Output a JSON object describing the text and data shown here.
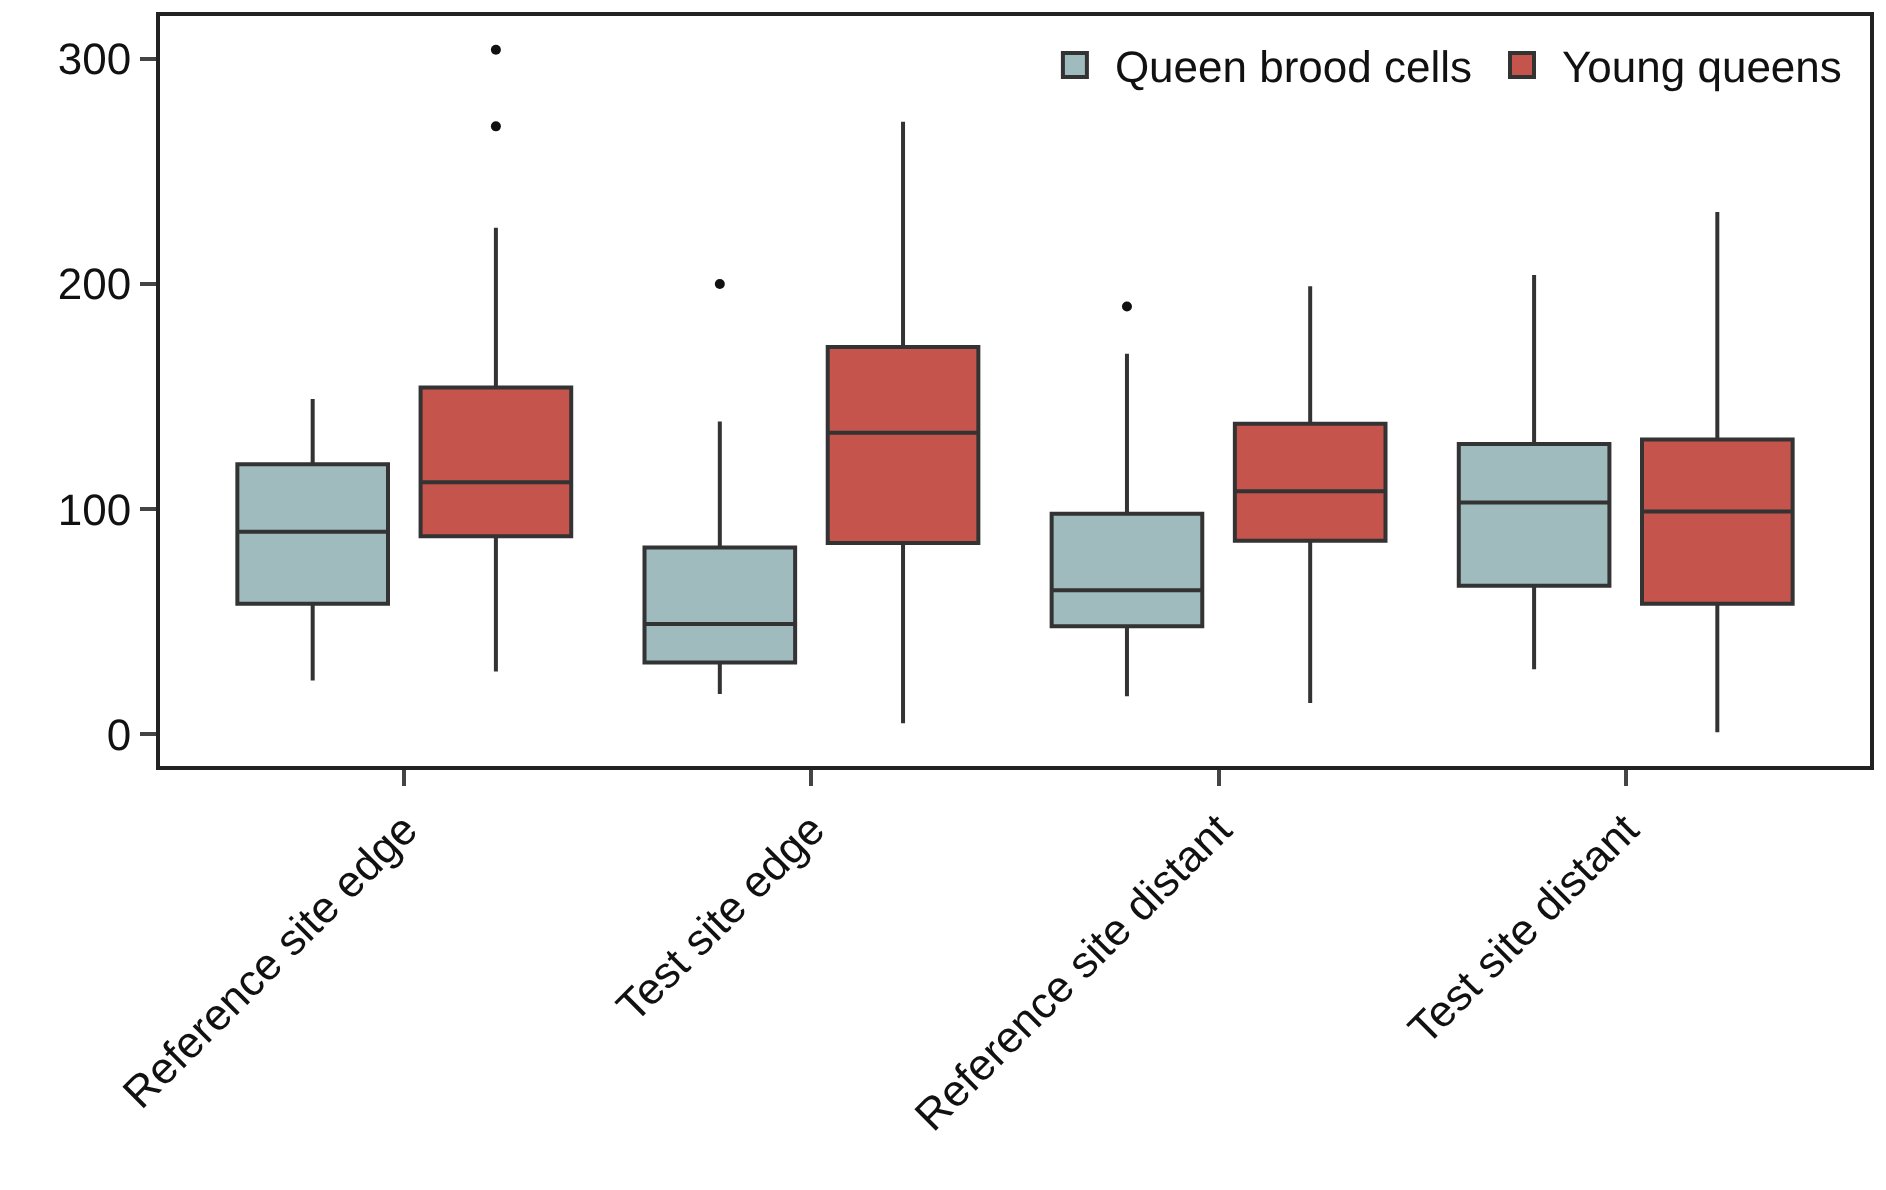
{
  "chart_data": {
    "type": "box",
    "categories": [
      "Reference site edge",
      "Test site edge",
      "Reference site distant",
      "Test site distant"
    ],
    "series": [
      {
        "name": "Queen brood cells",
        "color": "#9fbbbd",
        "boxes": [
          {
            "low": 24,
            "q1": 58,
            "median": 90,
            "q3": 120,
            "high": 149
          },
          {
            "low": 18,
            "q1": 32,
            "median": 49,
            "q3": 83,
            "high": 139,
            "outliers": [
              200
            ]
          },
          {
            "low": 17,
            "q1": 48,
            "median": 64,
            "q3": 98,
            "high": 169,
            "outliers": [
              190
            ]
          },
          {
            "low": 29,
            "q1": 66,
            "median": 103,
            "q3": 129,
            "high": 204
          }
        ]
      },
      {
        "name": "Young queens",
        "color": "#c5554c",
        "boxes": [
          {
            "low": 28,
            "q1": 88,
            "median": 112,
            "q3": 154,
            "high": 225,
            "outliers": [
              270,
              304
            ]
          },
          {
            "low": 5,
            "q1": 85,
            "median": 134,
            "q3": 172,
            "high": 272
          },
          {
            "low": 14,
            "q1": 86,
            "median": 108,
            "q3": 138,
            "high": 199
          },
          {
            "low": 1,
            "q1": 58,
            "median": 99,
            "q3": 131,
            "high": 232
          }
        ]
      }
    ],
    "ylim": [
      -14,
      319
    ],
    "yticks": [
      0,
      100,
      200,
      300
    ],
    "grid": false,
    "legend": "top right"
  }
}
